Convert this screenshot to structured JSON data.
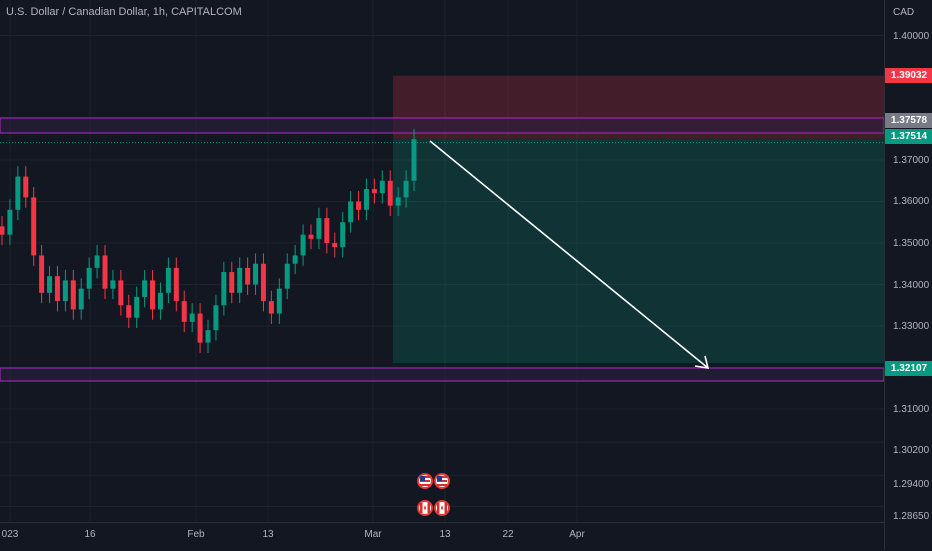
{
  "header": {
    "symbol_title": "U.S. Dollar / Canadian Dollar, 1h, CAPITALCOM"
  },
  "price_axis": {
    "currency": "CAD",
    "ticks": [
      "1.40000",
      "1.37000",
      "1.36000",
      "1.35000",
      "1.34000",
      "1.33000",
      "1.31000",
      "1.30200",
      "1.29400",
      "1.28650"
    ],
    "tick_values": [
      1.4,
      1.37,
      1.36,
      1.35,
      1.34,
      1.33,
      1.31,
      1.302,
      1.294,
      1.2865
    ],
    "stop_label": "1.39032",
    "resistance_label": "1.37578",
    "current_label": "1.37514",
    "target_label": "1.32107",
    "colors": {
      "stop": "#f23645",
      "resistance": "#8a8f99",
      "current": "#089981",
      "target": "#089981"
    }
  },
  "time_axis": {
    "ticks": [
      "023",
      "16",
      "Feb",
      "13",
      "Mar",
      "13",
      "22",
      "Apr"
    ]
  },
  "drawings": {
    "stop_zone_color": "#f23645",
    "target_zone_color": "#089981",
    "support_zone_color": "#9c27b0",
    "resistance_zone_color": "#9c27b0",
    "arrow_color": "#ffffff"
  },
  "events": [
    {
      "name": "us-flag-icon"
    },
    {
      "name": "us-flag-icon"
    },
    {
      "name": "ca-flag-icon"
    },
    {
      "name": "ca-flag-icon"
    }
  ],
  "chart_data": {
    "type": "candlestick",
    "title": "U.S. Dollar / Canadian Dollar, 1h, CAPITALCOM",
    "ylim": [
      1.2865,
      1.4055
    ],
    "x_ticks": [
      "023",
      "16",
      "Feb",
      "13",
      "Mar",
      "13",
      "22",
      "Apr"
    ],
    "price_trend_close": [
      1.352,
      1.358,
      1.366,
      1.361,
      1.347,
      1.338,
      1.342,
      1.336,
      1.341,
      1.334,
      1.339,
      1.344,
      1.347,
      1.339,
      1.341,
      1.335,
      1.332,
      1.337,
      1.341,
      1.334,
      1.338,
      1.344,
      1.336,
      1.331,
      1.333,
      1.326,
      1.329,
      1.335,
      1.343,
      1.338,
      1.344,
      1.34,
      1.345,
      1.336,
      1.333,
      1.339,
      1.345,
      1.347,
      1.352,
      1.351,
      1.356,
      1.35,
      1.349,
      1.355,
      1.36,
      1.358,
      1.363,
      1.362,
      1.365,
      1.359,
      1.361,
      1.365,
      1.375
    ],
    "trade_levels": {
      "stop": 1.39032,
      "resistance": 1.37578,
      "entry": 1.37514,
      "target": 1.32107
    }
  }
}
